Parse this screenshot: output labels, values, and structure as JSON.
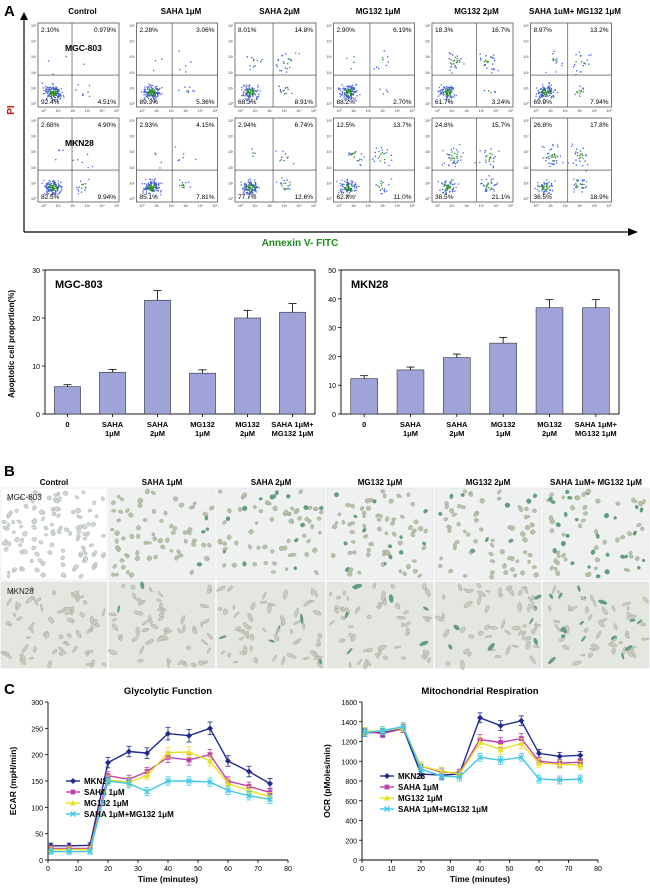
{
  "panels": {
    "a": "A",
    "b": "B",
    "c": "C"
  },
  "flow": {
    "conditions": [
      "Control",
      "SAHA  1μM",
      "SAHA  2μM",
      "MG132  1μM",
      "MG132  2μM",
      "SAHA 1uM+ MG132 1μM"
    ],
    "cell_lines": [
      "MGC-803",
      "MKN28"
    ],
    "y_axis_label": "PI",
    "x_axis_label": "Annexin V- FITC",
    "tick_labels": [
      "10⁰",
      "10¹",
      "10²",
      "10³",
      "10⁴",
      "10⁵"
    ],
    "quadrants": [
      [
        [
          "2.10%",
          "0.979%",
          "92.4%",
          "4.51%"
        ],
        [
          "2.28%",
          "3.06%",
          "89.3%",
          "5.36%"
        ],
        [
          "8.01%",
          "14.8%",
          "68.3%",
          "8.91%"
        ],
        [
          "2.90%",
          "6.19%",
          "88.2%",
          "2.70%"
        ],
        [
          "18.3%",
          "16.7%",
          "61.7%",
          "3.24%"
        ],
        [
          "8.97%",
          "13.2%",
          "69.9%",
          "7.94%"
        ]
      ],
      [
        [
          "2.68%",
          "4.90%",
          "82.5%",
          "9.94%"
        ],
        [
          "2.93%",
          "4.15%",
          "85.1%",
          "7.81%"
        ],
        [
          "2.94%",
          "6.74%",
          "77.7%",
          "12.6%"
        ],
        [
          "12.5%",
          "13.7%",
          "62.8%",
          "11.0%"
        ],
        [
          "24.8%",
          "15.7%",
          "38.5%",
          "21.1%"
        ],
        [
          "26.8%",
          "17.8%",
          "36.5%",
          "18.9%"
        ]
      ]
    ]
  },
  "bar_y_label": "Apoptotic cell proportion(%)",
  "microscopy": {
    "conditions": [
      "Control",
      "SAHA  1μM",
      "SAHA  2μM",
      "MG132  1μM",
      "MG132  2μM",
      "SAHA 1uM+ MG132 1μM"
    ],
    "cell_lines": [
      "MGC-803",
      "MKN28"
    ]
  },
  "chart_data": [
    {
      "type": "bar",
      "title": "MGC-803",
      "categories": [
        "0",
        "SAHA\n1μM",
        "SAHA\n2μM",
        "MG132\n1μM",
        "MG132\n2μM",
        "SAHA 1μM+\nMG132 1μM"
      ],
      "values": [
        5.7,
        8.7,
        23.7,
        8.5,
        20.0,
        21.2
      ],
      "errors": [
        0.4,
        0.6,
        2.0,
        0.7,
        1.6,
        1.8
      ],
      "ylabel": "Apoptotic cell proportion(%)",
      "ylim": [
        0,
        30
      ],
      "yticks": [
        "0",
        "10",
        "20",
        "30"
      ],
      "bar_color": "#9fa3d9"
    },
    {
      "type": "bar",
      "title": "MKN28",
      "categories": [
        "0",
        "SAHA\n1μM",
        "SAHA\n2μM",
        "MG132\n1μM",
        "MG132\n2μM",
        "SAHA 1μM+\nMG132 1μM"
      ],
      "values": [
        12.3,
        15.3,
        19.6,
        24.6,
        36.9,
        36.9
      ],
      "errors": [
        1.0,
        1.0,
        1.2,
        2.0,
        2.8,
        2.8
      ],
      "ylim": [
        0,
        50
      ],
      "yticks": [
        "0",
        "10",
        "20",
        "30",
        "40",
        "50"
      ],
      "bar_color": "#9fa3d9"
    },
    {
      "type": "line",
      "title": "Glycolytic Function",
      "xlabel": "Time (minutes)",
      "ylabel": "ECAR (mpH/min)",
      "xlim": [
        0,
        80
      ],
      "ylim": [
        0,
        300
      ],
      "xticks": [
        "0",
        "10",
        "20",
        "30",
        "40",
        "50",
        "60",
        "70",
        "80"
      ],
      "yticks": [
        "0",
        "50",
        "100",
        "150",
        "200",
        "250",
        "300"
      ],
      "x": [
        1,
        7,
        14,
        20,
        27,
        33,
        40,
        47,
        54,
        60,
        67,
        74
      ],
      "series": [
        {
          "name": "MKN28",
          "color": "#1f2a8c",
          "marker": "diamond",
          "values": [
            27,
            27,
            28,
            185,
            206,
            203,
            240,
            236,
            250,
            188,
            168,
            145
          ],
          "errors": [
            5,
            5,
            5,
            10,
            10,
            10,
            12,
            12,
            12,
            10,
            10,
            10
          ]
        },
        {
          "name": "SAHA  1μM",
          "color": "#c040b0",
          "marker": "square",
          "values": [
            22,
            22,
            22,
            160,
            153,
            168,
            195,
            190,
            200,
            150,
            140,
            128
          ],
          "errors": [
            5,
            5,
            5,
            8,
            8,
            8,
            10,
            10,
            10,
            8,
            8,
            8
          ]
        },
        {
          "name": "MG132  1μM",
          "color": "#e8e020",
          "marker": "triangle",
          "values": [
            20,
            20,
            20,
            152,
            148,
            160,
            204,
            205,
            188,
            145,
            132,
            120
          ],
          "errors": [
            5,
            5,
            5,
            8,
            8,
            8,
            10,
            10,
            10,
            8,
            8,
            8
          ]
        },
        {
          "name": "SAHA 1μM+MG132 1μM",
          "color": "#40c8e8",
          "marker": "x",
          "values": [
            16,
            16,
            16,
            150,
            145,
            130,
            150,
            150,
            148,
            132,
            122,
            115
          ],
          "errors": [
            5,
            5,
            5,
            8,
            8,
            8,
            8,
            8,
            8,
            8,
            8,
            8
          ]
        }
      ]
    },
    {
      "type": "line",
      "title": "Mitochondrial Respiration",
      "xlabel": "Time (minutes)",
      "ylabel": "OCR (pMoles/min)",
      "xlim": [
        0,
        80
      ],
      "ylim": [
        0,
        1600
      ],
      "xticks": [
        "0",
        "10",
        "20",
        "30",
        "40",
        "50",
        "60",
        "70",
        "80"
      ],
      "yticks": [
        "0",
        "200",
        "400",
        "600",
        "800",
        "1000",
        "1200",
        "1400",
        "1600"
      ],
      "x": [
        1,
        7,
        14,
        20,
        27,
        33,
        40,
        47,
        54,
        60,
        67,
        74
      ],
      "series": [
        {
          "name": "MKN28",
          "color": "#1f2a8c",
          "marker": "diamond",
          "values": [
            1290,
            1290,
            1330,
            870,
            860,
            870,
            1440,
            1360,
            1410,
            1080,
            1050,
            1060
          ],
          "errors": [
            40,
            40,
            40,
            40,
            40,
            40,
            50,
            50,
            50,
            40,
            40,
            40
          ]
        },
        {
          "name": "SAHA  1μM",
          "color": "#c040b0",
          "marker": "square",
          "values": [
            1300,
            1280,
            1330,
            950,
            890,
            880,
            1220,
            1190,
            1230,
            1000,
            980,
            990
          ],
          "errors": [
            40,
            40,
            40,
            40,
            40,
            40,
            50,
            50,
            50,
            40,
            40,
            40
          ]
        },
        {
          "name": "MG132  1μM",
          "color": "#e8e020",
          "marker": "triangle",
          "values": [
            1300,
            1310,
            1340,
            950,
            900,
            870,
            1190,
            1120,
            1180,
            980,
            970,
            960
          ],
          "errors": [
            40,
            40,
            40,
            40,
            40,
            40,
            50,
            50,
            50,
            40,
            40,
            40
          ]
        },
        {
          "name": "SAHA 1μM+MG132 1μM",
          "color": "#40c8e8",
          "marker": "x",
          "values": [
            1290,
            1310,
            1350,
            920,
            850,
            840,
            1040,
            1010,
            1040,
            820,
            810,
            820
          ],
          "errors": [
            40,
            40,
            40,
            40,
            40,
            40,
            40,
            40,
            40,
            40,
            40,
            40
          ]
        }
      ]
    }
  ]
}
